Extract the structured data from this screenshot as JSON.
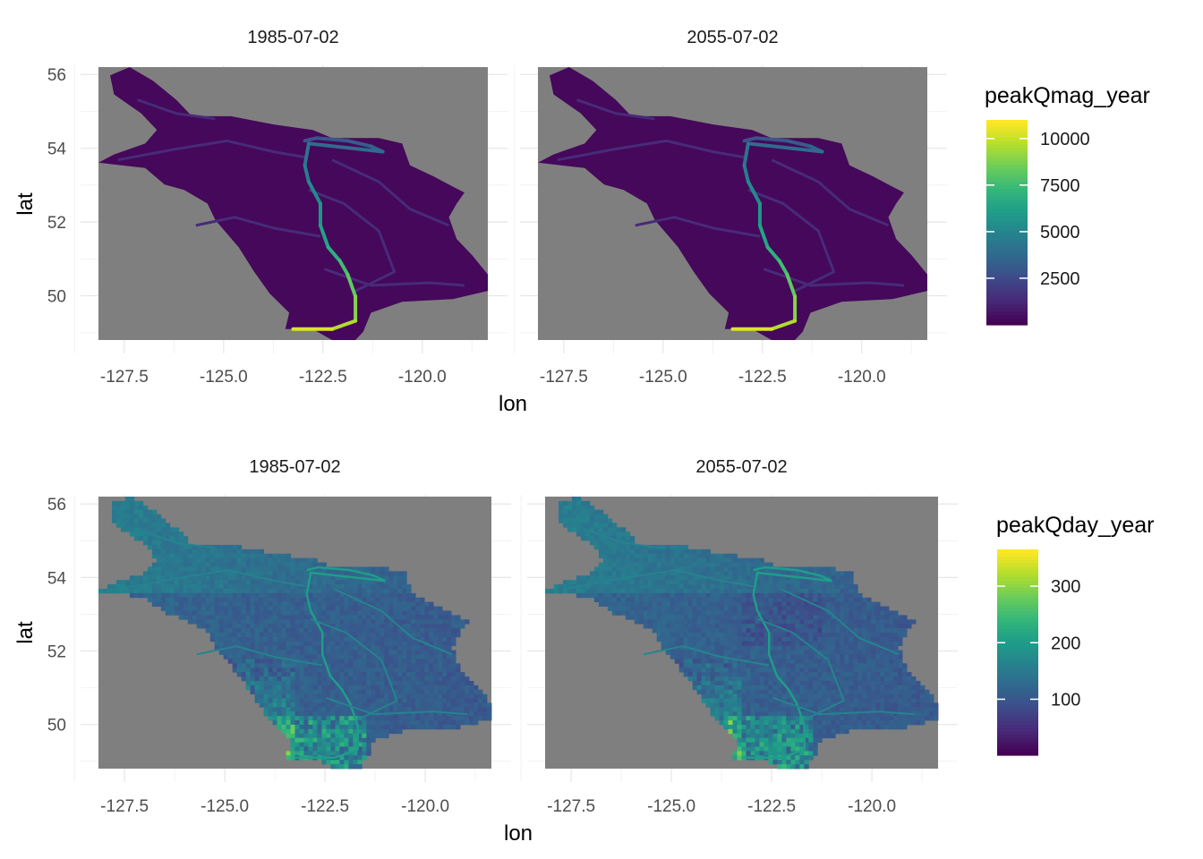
{
  "colors": {
    "panel_background": "#7f7f7f",
    "grid_major": "#e6e6e6",
    "grid_minor": "#f2f2f2",
    "viridis": [
      "#440154",
      "#482878",
      "#3e4a89",
      "#31688e",
      "#26828e",
      "#1f9e89",
      "#35b779",
      "#6dcd59",
      "#b4de2c",
      "#fde725"
    ]
  },
  "chart_data": [
    {
      "type": "heatmap",
      "id": "magnitude",
      "facets": [
        {
          "label": "1985-07-02"
        },
        {
          "label": "2055-07-02"
        }
      ],
      "xlabel": "lon",
      "ylabel": "lat",
      "x_ticks": [
        "-127.5",
        "-125.0",
        "-122.5",
        "-120.0"
      ],
      "y_ticks": [
        "50",
        "52",
        "54",
        "56"
      ],
      "xlim": [
        -128.15,
        -118.35
      ],
      "ylim": [
        48.8,
        56.2
      ],
      "legend": {
        "title": "peakQmag_year",
        "ticks": [
          "2500",
          "5000",
          "7500",
          "10000"
        ],
        "range": [
          0,
          11000
        ],
        "placement": "right",
        "colormap": "viridis"
      }
    },
    {
      "type": "heatmap",
      "id": "day",
      "facets": [
        {
          "label": "1985-07-02"
        },
        {
          "label": "2055-07-02"
        }
      ],
      "xlabel": "lon",
      "ylabel": "lat",
      "x_ticks": [
        "-127.5",
        "-125.0",
        "-122.5",
        "-120.0"
      ],
      "y_ticks": [
        "50",
        "52",
        "54",
        "56"
      ],
      "xlim": [
        -128.15,
        -118.35
      ],
      "ylim": [
        48.8,
        56.2
      ],
      "legend": {
        "title": "peakQday_year",
        "ticks": [
          "100",
          "200",
          "300"
        ],
        "range": [
          1,
          365
        ],
        "placement": "right",
        "colormap": "viridis"
      }
    }
  ]
}
